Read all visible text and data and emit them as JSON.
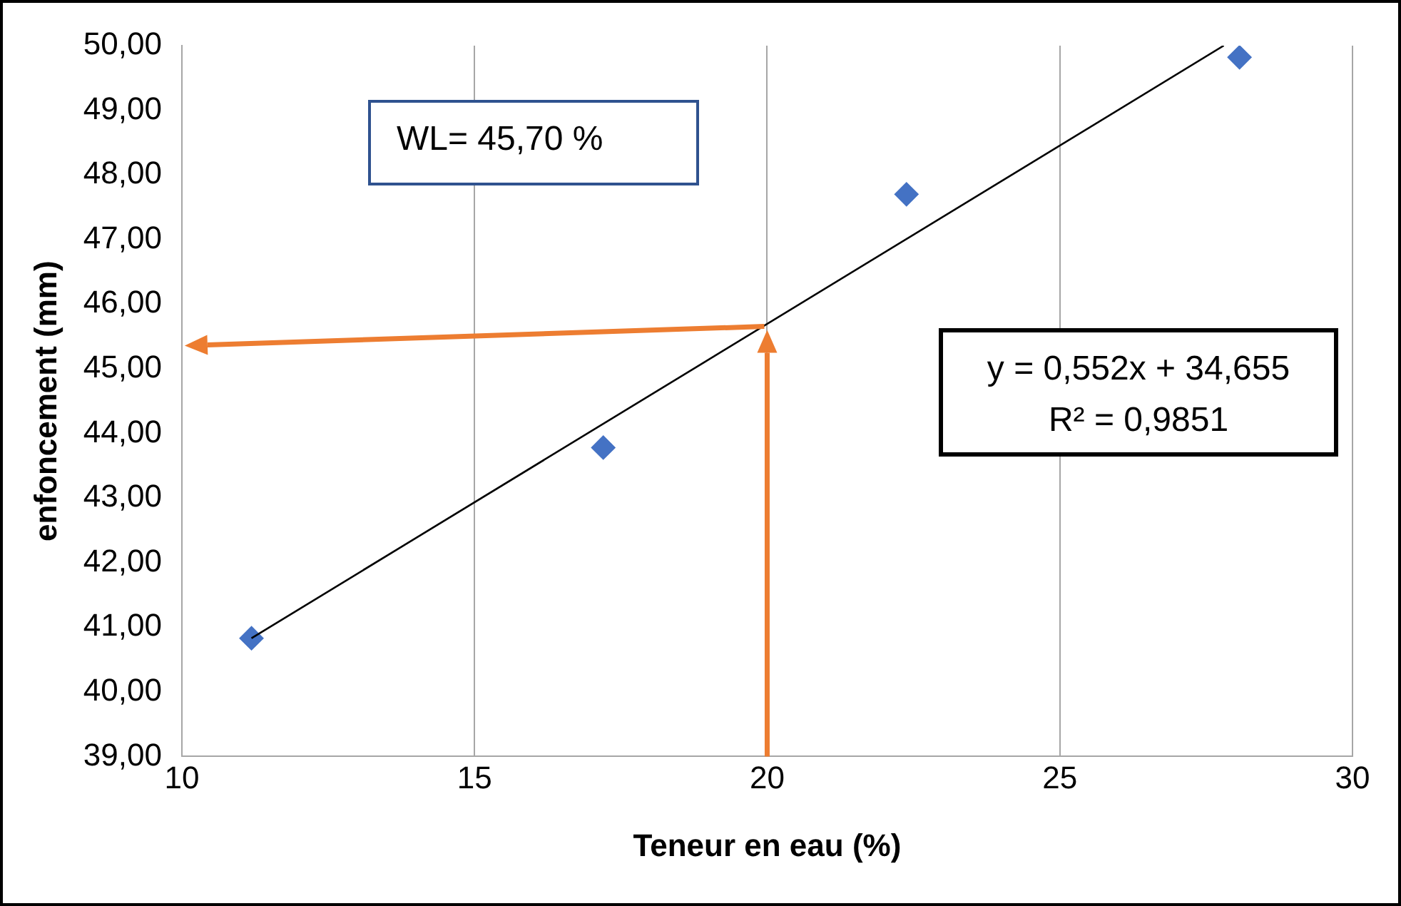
{
  "chart_data": {
    "type": "scatter",
    "xlabel": "Teneur en eau (%)",
    "ylabel": "enfoncement (mm)",
    "xlim": [
      10,
      30
    ],
    "xticks": [
      10,
      15,
      20,
      25,
      30
    ],
    "ylim": [
      39,
      50
    ],
    "yticks": [
      {
        "value": 39,
        "label": "39,00"
      },
      {
        "value": 40,
        "label": "40,00"
      },
      {
        "value": 41,
        "label": "41,00"
      },
      {
        "value": 42,
        "label": "42,00"
      },
      {
        "value": 43,
        "label": "43,00"
      },
      {
        "value": 44,
        "label": "44,00"
      },
      {
        "value": 45,
        "label": "45,00"
      },
      {
        "value": 46,
        "label": "46,00"
      },
      {
        "value": 47,
        "label": "47,00"
      },
      {
        "value": 48,
        "label": "48,00"
      },
      {
        "value": 49,
        "label": "49,00"
      },
      {
        "value": 50,
        "label": "50,00"
      }
    ],
    "grid": "x",
    "series": [
      {
        "marker": "diamond",
        "color": "#4472c4",
        "x": [
          11.19,
          17.2,
          22.38,
          28.07
        ],
        "values": [
          40.83,
          43.78,
          47.7,
          49.82
        ]
      },
      {
        "type": "line",
        "marker": "none",
        "color": "#000000",
        "x": [
          11.19,
          27.8
        ],
        "values": [
          40.83,
          50.0
        ]
      }
    ],
    "annotations": [
      "WL= 45,70 %",
      "y = 0,552x + 34,655",
      "R² = 0,9851"
    ]
  }
}
